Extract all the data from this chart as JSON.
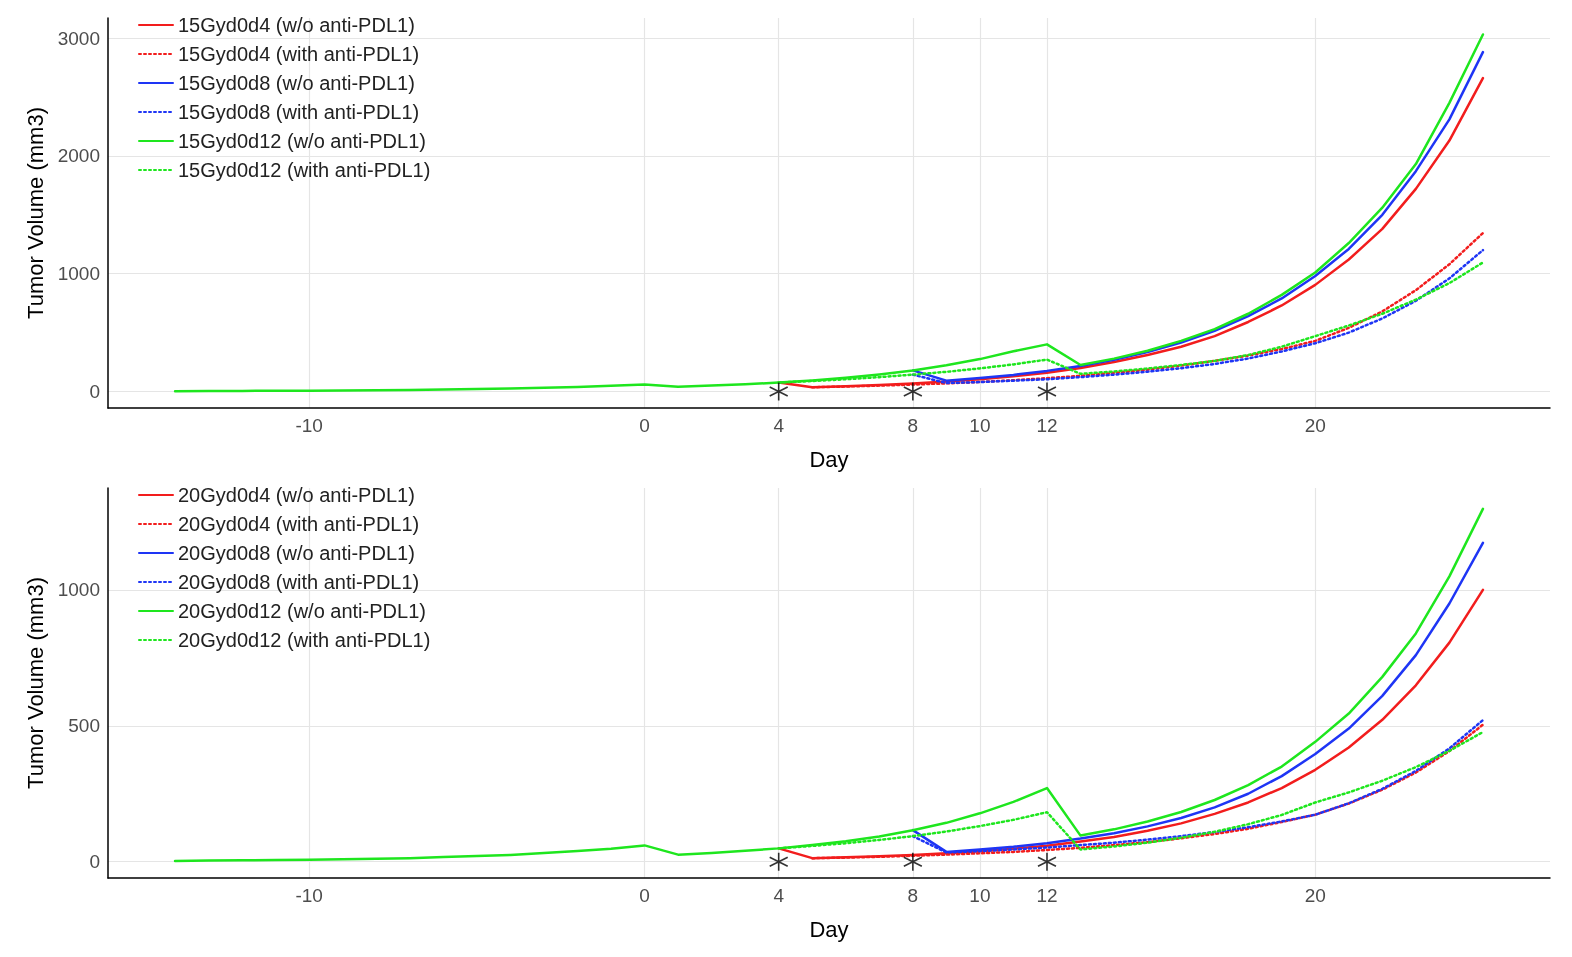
{
  "chart_data": [
    {
      "type": "line",
      "xlabel": "Day",
      "ylabel": "Tumor Volume (mm3)",
      "xlim": [
        -16,
        27
      ],
      "xticks": [
        -10,
        0,
        4,
        8,
        10,
        12,
        20
      ],
      "ylim": [
        -140,
        3170
      ],
      "yticks": [
        0,
        1000,
        2000,
        3000
      ],
      "grid": true,
      "legend": "top left",
      "marker": "none",
      "x": [
        -14,
        -13,
        -12,
        -11,
        -10,
        -9,
        -8,
        -7,
        -6,
        -5,
        -4,
        -3,
        -2,
        -1,
        0,
        1,
        2,
        3,
        4,
        5,
        6,
        7,
        8,
        9,
        10,
        11,
        12,
        13,
        14,
        15,
        16,
        17,
        18,
        19,
        20,
        21,
        22,
        23,
        24,
        25
      ],
      "series": [
        {
          "name": "15Gyd0d4 (w/o anti-PDL1)",
          "color": "#f21d1d",
          "line_style": "solid",
          "values": [
            null,
            null,
            null,
            null,
            null,
            null,
            null,
            null,
            null,
            null,
            null,
            null,
            null,
            null,
            null,
            null,
            null,
            null,
            76,
            36,
            45,
            55,
            68,
            85,
            105,
            130,
            160,
            200,
            250,
            310,
            380,
            470,
            590,
            730,
            905,
            1120,
            1380,
            1720,
            2130,
            2660
          ]
        },
        {
          "name": "15Gyd0d4 (with anti-PDL1)",
          "color": "#f21d1d",
          "line_style": "dotted",
          "values": [
            null,
            null,
            null,
            null,
            null,
            null,
            null,
            null,
            null,
            null,
            null,
            null,
            null,
            null,
            null,
            null,
            null,
            null,
            null,
            36,
            42,
            50,
            59,
            69,
            81,
            96,
            113,
            133,
            157,
            185,
            220,
            260,
            305,
            360,
            430,
            540,
            680,
            860,
            1080,
            1345
          ]
        },
        {
          "name": "15Gyd0d8 (w/o anti-PDL1)",
          "color": "#1e35f5",
          "line_style": "solid",
          "values": [
            null,
            null,
            null,
            null,
            null,
            null,
            null,
            null,
            null,
            null,
            null,
            null,
            null,
            null,
            null,
            null,
            null,
            null,
            null,
            null,
            null,
            null,
            179,
            92,
            114,
            141,
            175,
            217,
            270,
            335,
            415,
            515,
            640,
            790,
            980,
            1210,
            1500,
            1870,
            2310,
            2880
          ]
        },
        {
          "name": "15Gyd0d8 (with anti-PDL1)",
          "color": "#1e35f5",
          "line_style": "dotted",
          "values": [
            null,
            null,
            null,
            null,
            null,
            null,
            null,
            null,
            null,
            null,
            null,
            null,
            null,
            null,
            null,
            null,
            null,
            null,
            null,
            null,
            null,
            null,
            143,
            72,
            80,
            92,
            104,
            122,
            143,
            168,
            198,
            234,
            280,
            340,
            410,
            500,
            620,
            770,
            960,
            1200
          ]
        },
        {
          "name": "15Gyd0d12 (w/o anti-PDL1)",
          "color": "#1ee61e",
          "line_style": "solid",
          "values": [
            3,
            4,
            5,
            6,
            7,
            9,
            11,
            13,
            17,
            21,
            25,
            32,
            39,
            48,
            60,
            40,
            50,
            61,
            76,
            94,
            117,
            145,
            179,
            222,
            275,
            341,
            400,
            225,
            279,
            346,
            430,
            530,
            660,
            820,
            1010,
            1260,
            1560,
            1930,
            2450,
            3030
          ]
        },
        {
          "name": "15Gyd0d12 (with anti-PDL1)",
          "color": "#1ee61e",
          "line_style": "dotted",
          "values": [
            null,
            null,
            null,
            null,
            null,
            null,
            null,
            null,
            null,
            null,
            null,
            null,
            null,
            null,
            null,
            null,
            null,
            null,
            76,
            89,
            104,
            122,
            143,
            167,
            196,
            230,
            271,
            150,
            170,
            195,
            225,
            260,
            310,
            380,
            470,
            560,
            660,
            780,
            920,
            1095
          ]
        },
        {
          "type": "scatter",
          "color": "#000000",
          "marker": "cross",
          "x": [
            4,
            8,
            12
          ],
          "values": [
            0,
            0,
            0
          ]
        }
      ]
    },
    {
      "type": "line",
      "xlabel": "Day",
      "ylabel": "Tumor Volume (mm3)",
      "xlim": [
        -16,
        27
      ],
      "xticks": [
        -10,
        0,
        4,
        8,
        10,
        12,
        20
      ],
      "ylim": [
        -60,
        1375
      ],
      "yticks": [
        0,
        500,
        1000
      ],
      "grid": true,
      "legend": "top left",
      "marker": "none",
      "x": [
        -14,
        -13,
        -12,
        -11,
        -10,
        -9,
        -8,
        -7,
        -6,
        -5,
        -4,
        -3,
        -2,
        -1,
        0,
        1,
        2,
        3,
        4,
        5,
        6,
        7,
        8,
        9,
        10,
        11,
        12,
        13,
        14,
        15,
        16,
        17,
        18,
        19,
        20,
        21,
        22,
        23,
        24,
        25
      ],
      "series": [
        {
          "name": "20Gyd0d4 (w/o anti-PDL1)",
          "color": "#f21d1d",
          "line_style": "solid",
          "values": [
            null,
            null,
            null,
            null,
            null,
            null,
            null,
            null,
            null,
            null,
            null,
            null,
            null,
            null,
            null,
            null,
            null,
            null,
            49,
            13,
            16,
            20,
            25,
            31,
            38,
            48,
            59,
            74,
            91,
            114,
            141,
            176,
            218,
            271,
            338,
            420,
            522,
            649,
            806,
            1000
          ]
        },
        {
          "name": "20Gyd0d4 (with anti-PDL1)",
          "color": "#f21d1d",
          "line_style": "dotted",
          "values": [
            null,
            null,
            null,
            null,
            null,
            null,
            null,
            null,
            null,
            null,
            null,
            null,
            null,
            null,
            null,
            null,
            null,
            null,
            null,
            13,
            15,
            18,
            22,
            26,
            31,
            36,
            43,
            51,
            61,
            72,
            86,
            102,
            121,
            146,
            173,
            214,
            265,
            328,
            407,
            504
          ]
        },
        {
          "name": "20Gyd0d8 (w/o anti-PDL1)",
          "color": "#1e35f5",
          "line_style": "solid",
          "values": [
            null,
            null,
            null,
            null,
            null,
            null,
            null,
            null,
            null,
            null,
            null,
            null,
            null,
            null,
            null,
            null,
            null,
            null,
            null,
            null,
            null,
            null,
            116,
            36,
            45,
            55,
            68,
            85,
            105,
            130,
            161,
            200,
            250,
            315,
            396,
            490,
            610,
            760,
            950,
            1173
          ]
        },
        {
          "name": "20Gyd0d8 (with anti-PDL1)",
          "color": "#1e35f5",
          "line_style": "dotted",
          "values": [
            null,
            null,
            null,
            null,
            null,
            null,
            null,
            null,
            null,
            null,
            null,
            null,
            null,
            null,
            null,
            null,
            null,
            null,
            null,
            null,
            null,
            null,
            94,
            34,
            39,
            45,
            52,
            61,
            70,
            81,
            94,
            109,
            127,
            148,
            173,
            215,
            268,
            334,
            417,
            521
          ]
        },
        {
          "name": "20Gyd0d12 (w/o anti-PDL1)",
          "color": "#1ee61e",
          "line_style": "solid",
          "values": [
            3,
            4,
            5,
            6,
            7,
            9,
            11,
            13,
            17,
            21,
            25,
            32,
            39,
            48,
            60,
            26,
            32,
            40,
            49,
            61,
            75,
            93,
            116,
            143,
            178,
            220,
            271,
            96,
            119,
            148,
            183,
            227,
            282,
            350,
            441,
            545,
            680,
            840,
            1050,
            1298
          ]
        },
        {
          "name": "20Gyd0d12 (with anti-PDL1)",
          "color": "#1ee61e",
          "line_style": "dotted",
          "values": [
            null,
            null,
            null,
            null,
            null,
            null,
            null,
            null,
            null,
            null,
            null,
            null,
            null,
            null,
            null,
            null,
            null,
            null,
            49,
            58,
            68,
            80,
            94,
            111,
            131,
            154,
            182,
            45,
            56,
            70,
            88,
            110,
            138,
            172,
            218,
            255,
            298,
            348,
            408,
            477
          ]
        },
        {
          "type": "scatter",
          "color": "#000000",
          "marker": "cross",
          "x": [
            4,
            8,
            12
          ],
          "values": [
            0,
            0,
            0
          ]
        }
      ]
    }
  ]
}
